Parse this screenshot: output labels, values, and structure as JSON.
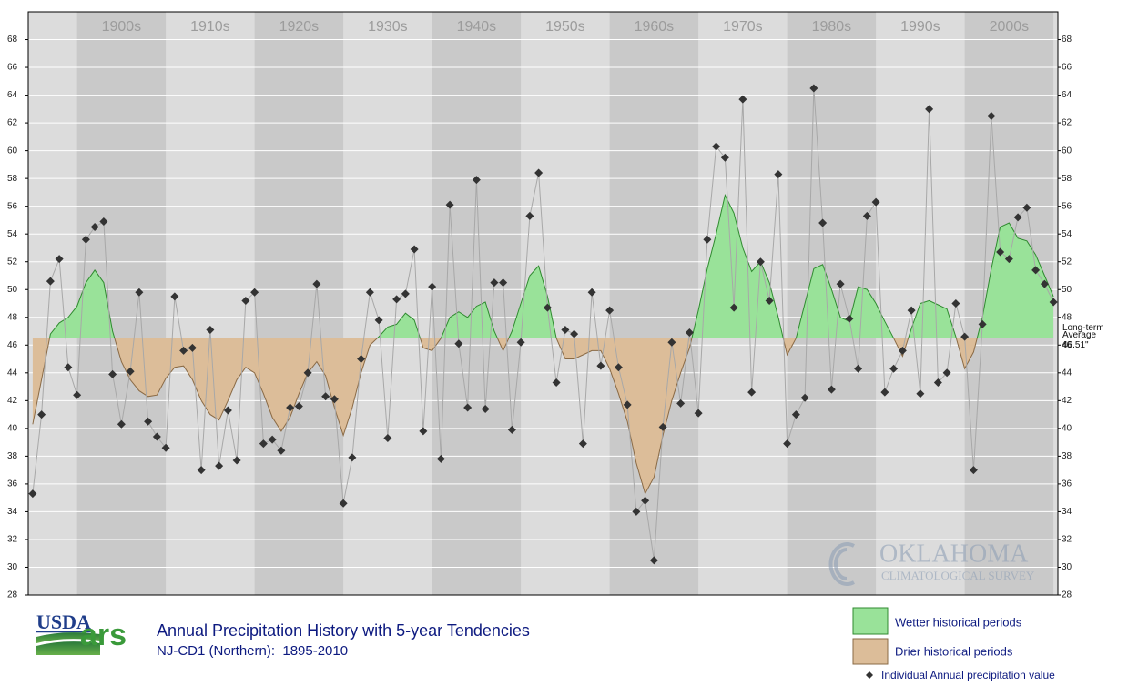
{
  "chart_data": {
    "type": "line",
    "title": "Annual Precipitation History with 5-year Tendencies",
    "subtitle": "NJ-CD1 (Northern):  1895-2010",
    "x": [
      1895,
      1896,
      1897,
      1898,
      1899,
      1900,
      1901,
      1902,
      1903,
      1904,
      1905,
      1906,
      1907,
      1908,
      1909,
      1910,
      1911,
      1912,
      1913,
      1914,
      1915,
      1916,
      1917,
      1918,
      1919,
      1920,
      1921,
      1922,
      1923,
      1924,
      1925,
      1926,
      1927,
      1928,
      1929,
      1930,
      1931,
      1932,
      1933,
      1934,
      1935,
      1936,
      1937,
      1938,
      1939,
      1940,
      1941,
      1942,
      1943,
      1944,
      1945,
      1946,
      1947,
      1948,
      1949,
      1950,
      1951,
      1952,
      1953,
      1954,
      1955,
      1956,
      1957,
      1958,
      1959,
      1960,
      1961,
      1962,
      1963,
      1964,
      1965,
      1966,
      1967,
      1968,
      1969,
      1970,
      1971,
      1972,
      1973,
      1974,
      1975,
      1976,
      1977,
      1978,
      1979,
      1980,
      1981,
      1982,
      1983,
      1984,
      1985,
      1986,
      1987,
      1988,
      1989,
      1990,
      1991,
      1992,
      1993,
      1994,
      1995,
      1996,
      1997,
      1998,
      1999,
      2000,
      2001,
      2002,
      2003,
      2004,
      2005,
      2006,
      2007,
      2008,
      2009,
      2010
    ],
    "series": [
      {
        "name": "Individual Annual precipitation value",
        "color": "#333333",
        "values": [
          35.3,
          41.0,
          50.6,
          52.2,
          44.4,
          42.4,
          53.6,
          54.5,
          54.9,
          43.9,
          40.3,
          44.1,
          49.8,
          40.5,
          39.4,
          38.6,
          49.5,
          45.6,
          45.8,
          37.0,
          47.1,
          37.3,
          41.3,
          37.7,
          49.2,
          49.8,
          38.9,
          39.2,
          38.4,
          41.5,
          41.6,
          44.0,
          50.4,
          42.3,
          42.1,
          34.6,
          37.9,
          45.0,
          49.8,
          47.8,
          39.3,
          49.3,
          49.7,
          52.9,
          39.8,
          50.2,
          37.8,
          56.1,
          46.1,
          41.5,
          57.9,
          41.4,
          50.5,
          50.5,
          39.9,
          46.2,
          55.3,
          58.4,
          48.7,
          43.3,
          47.1,
          46.8,
          38.9,
          49.8,
          44.5,
          48.5,
          44.4,
          41.7,
          34.0,
          34.8,
          30.5,
          40.1,
          46.2,
          41.8,
          46.9,
          41.1,
          53.6,
          60.3,
          59.5,
          48.7,
          63.7,
          42.6,
          52.0,
          49.2,
          58.3,
          38.9,
          41.0,
          42.2,
          64.5,
          54.8,
          42.8,
          50.4,
          47.9,
          44.3,
          55.3,
          56.3,
          42.6,
          44.3,
          45.6,
          48.5,
          42.5,
          63.0,
          43.3,
          44.0,
          49.0,
          46.6,
          37.0,
          47.5,
          62.5,
          52.7,
          52.2,
          55.2,
          55.9,
          51.4,
          50.4,
          49.1
        ]
      }
    ],
    "tendency": {
      "values": [
        40.3,
        43.5,
        46.8,
        47.6,
        48.0,
        48.8,
        50.5,
        51.4,
        50.5,
        47.0,
        44.8,
        43.5,
        42.7,
        42.3,
        42.4,
        43.6,
        44.4,
        44.5,
        43.5,
        42.0,
        41.0,
        40.6,
        42.0,
        43.5,
        44.4,
        44.0,
        42.5,
        40.8,
        39.8,
        40.8,
        42.5,
        44.0,
        44.8,
        43.8,
        41.5,
        39.5,
        41.5,
        44.0,
        46.0,
        46.6,
        47.3,
        47.5,
        48.3,
        47.8,
        45.8,
        45.6,
        46.5,
        48.0,
        48.4,
        48.0,
        48.8,
        49.1,
        47.0,
        45.6,
        47.0,
        49.0,
        51.0,
        51.7,
        49.5,
        46.5,
        45.0,
        45.0,
        45.3,
        45.6,
        45.6,
        44.3,
        42.5,
        40.5,
        37.5,
        35.3,
        36.5,
        39.5,
        42.0,
        44.0,
        45.8,
        48.5,
        51.5,
        54.0,
        56.8,
        55.5,
        53.0,
        51.3,
        52.0,
        50.5,
        48.0,
        45.3,
        46.5,
        49.0,
        51.5,
        51.8,
        50.0,
        48.0,
        47.7,
        50.2,
        50.0,
        49.0,
        47.7,
        46.5,
        45.2,
        47.2,
        49.0,
        49.2,
        48.9,
        48.6,
        46.6,
        44.3,
        45.5,
        48.0,
        51.5,
        54.5,
        54.8,
        53.7,
        53.5,
        52.5,
        51.0,
        49.5
      ],
      "above": {
        "name": "Wetter historical periods",
        "color": "#99e299"
      },
      "below": {
        "name": "Drier historical periods",
        "color": "#dcbd99"
      }
    },
    "reference_line": {
      "label": [
        "Long-term",
        "Average"
      ],
      "value": 46.51,
      "value_label": "46.51\""
    },
    "xlim": [
      1894.5,
      2010.5
    ],
    "xticks": [
      {
        "value": 1905,
        "label": "1900s"
      },
      {
        "value": 1915,
        "label": "1910s"
      },
      {
        "value": 1925,
        "label": "1920s"
      },
      {
        "value": 1935,
        "label": "1930s"
      },
      {
        "value": 1945,
        "label": "1940s"
      },
      {
        "value": 1955,
        "label": "1950s"
      },
      {
        "value": 1965,
        "label": "1960s"
      },
      {
        "value": 1975,
        "label": "1970s"
      },
      {
        "value": 1985,
        "label": "1980s"
      },
      {
        "value": 1995,
        "label": "1990s"
      },
      {
        "value": 2005,
        "label": "2000s"
      }
    ],
    "ylim": [
      28,
      70
    ],
    "yticks": [
      28,
      30,
      32,
      34,
      36,
      38,
      40,
      42,
      44,
      46,
      48,
      50,
      52,
      54,
      56,
      58,
      60,
      62,
      64,
      66,
      68
    ],
    "grid": true,
    "credits": {
      "usda": "USDA",
      "ars": "ars",
      "watermark": [
        "OKLAHOMA",
        "CLIMATOLOGICAL SURVEY"
      ]
    }
  }
}
